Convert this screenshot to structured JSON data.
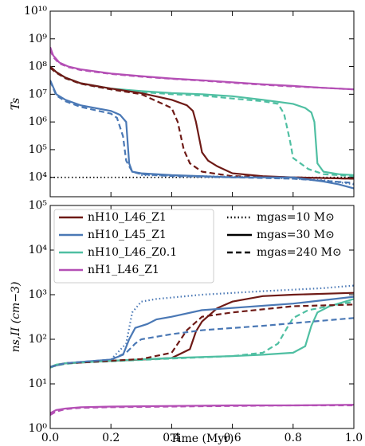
{
  "chart_data": [
    {
      "type": "line",
      "ylabel": "Ts",
      "log_y": true,
      "xlim": [
        0,
        1
      ],
      "ylim": [
        2000,
        10000000000.0
      ],
      "yticks": [
        {
          "value": 10000.0,
          "label": "10⁴"
        },
        {
          "value": 100000.0,
          "label": "10⁵"
        },
        {
          "value": 1000000.0,
          "label": "10⁶"
        },
        {
          "value": 10000000.0,
          "label": "10⁷"
        },
        {
          "value": 100000000.0,
          "label": "10⁸"
        },
        {
          "value": 1000000000.0,
          "label": "10⁹"
        },
        {
          "value": 10000000000.0,
          "label": "10¹⁰"
        }
      ],
      "reference_line": {
        "value": 10000,
        "color": "#000000",
        "line": "dotted"
      },
      "series": [
        {
          "name": "nH1_L46_Z1",
          "color": "#b44fb5",
          "line": "solid",
          "x": [
            0,
            0.01,
            0.03,
            0.06,
            0.1,
            0.2,
            0.3,
            0.4,
            0.5,
            0.6,
            0.7,
            0.8,
            0.9,
            1.0
          ],
          "values": [
            500000000.0,
            250000000.0,
            140000000.0,
            100000000.0,
            79000000.0,
            56000000.0,
            45000000.0,
            37000000.0,
            32000000.0,
            27000000.0,
            23000000.0,
            20000000.0,
            17000000.0,
            15000000.0
          ]
        },
        {
          "name": "nH1_L46_Z1",
          "color": "#b44fb5",
          "line": "dashed",
          "x": [
            0,
            0.01,
            0.03,
            0.06,
            0.1,
            0.2,
            0.3,
            0.4,
            0.5,
            0.6,
            0.7,
            0.8,
            0.9,
            1.0
          ],
          "values": [
            400000000.0,
            220000000.0,
            130000000.0,
            95000000.0,
            75000000.0,
            54000000.0,
            43000000.0,
            36000000.0,
            31000000.0,
            26000000.0,
            22000000.0,
            19000000.0,
            17000000.0,
            15000000.0
          ]
        },
        {
          "name": "nH10_L46_Z0.1",
          "color": "#4fbfa2",
          "line": "solid",
          "x": [
            0,
            0.02,
            0.05,
            0.1,
            0.2,
            0.3,
            0.4,
            0.5,
            0.6,
            0.7,
            0.8,
            0.84,
            0.86,
            0.87,
            0.88,
            0.9,
            0.95,
            1.0
          ],
          "values": [
            100000000.0,
            63000000.0,
            40000000.0,
            25000000.0,
            16000000.0,
            13000000.0,
            11000000.0,
            10000000.0,
            8500000.0,
            6300000.0,
            4500000.0,
            3200000.0,
            2200000.0,
            1000000.0,
            32000.0,
            16000.0,
            13000.0,
            12000.0
          ]
        },
        {
          "name": "nH10_L46_Z0.1",
          "color": "#4fbfa2",
          "line": "dashed",
          "x": [
            0,
            0.02,
            0.05,
            0.1,
            0.2,
            0.3,
            0.4,
            0.5,
            0.6,
            0.7,
            0.75,
            0.77,
            0.79,
            0.8,
            0.85,
            0.9,
            1.0
          ],
          "values": [
            90000000.0,
            60000000.0,
            38000000.0,
            24000000.0,
            15000000.0,
            12000000.0,
            10000000.0,
            9000000.0,
            7000000.0,
            5600000.0,
            4500000.0,
            2000000.0,
            200000.0,
            50000.0,
            20000.0,
            13000.0,
            11000.0
          ]
        },
        {
          "name": "nH10_L46_Z1",
          "color": "#6e1a16",
          "line": "solid",
          "x": [
            0,
            0.02,
            0.05,
            0.1,
            0.2,
            0.3,
            0.4,
            0.45,
            0.47,
            0.48,
            0.5,
            0.52,
            0.55,
            0.6,
            0.7,
            0.8,
            1.0
          ],
          "values": [
            100000000.0,
            63000000.0,
            40000000.0,
            25000000.0,
            16000000.0,
            11000000.0,
            6300000.0,
            4000000.0,
            2500000.0,
            1000000.0,
            80000.0,
            40000.0,
            25000.0,
            14000.0,
            11000.0,
            10000.0,
            8900.0
          ]
        },
        {
          "name": "nH10_L46_Z1",
          "color": "#6e1a16",
          "line": "dashed",
          "x": [
            0,
            0.02,
            0.05,
            0.1,
            0.2,
            0.3,
            0.4,
            0.42,
            0.44,
            0.46,
            0.5,
            0.6,
            0.8,
            1.0
          ],
          "values": [
            90000000.0,
            60000000.0,
            38000000.0,
            24000000.0,
            15000000.0,
            10000000.0,
            3200000.0,
            1000000.0,
            100000.0,
            32000.0,
            16000.0,
            11000.0,
            10000.0,
            8900.0
          ]
        },
        {
          "name": "nH10_L45_Z1",
          "color": "#4a78b5",
          "line": "solid",
          "x": [
            0,
            0.02,
            0.05,
            0.1,
            0.2,
            0.23,
            0.25,
            0.26,
            0.27,
            0.3,
            0.4,
            0.5,
            0.6,
            0.8,
            0.9,
            0.95,
            1.0
          ],
          "values": [
            32000000.0,
            10000000.0,
            6300000.0,
            4000000.0,
            2500000.0,
            1800000.0,
            1000000.0,
            32000.0,
            16000.0,
            14000.0,
            12000.0,
            11000.0,
            10000.0,
            10000.0,
            7100.0,
            5600.0,
            4000.0
          ]
        },
        {
          "name": "nH10_L45_Z1",
          "color": "#4a78b5",
          "line": "dashed",
          "x": [
            0,
            0.02,
            0.05,
            0.1,
            0.2,
            0.22,
            0.24,
            0.25,
            0.27,
            0.3,
            0.4,
            0.6,
            0.8,
            1.0
          ],
          "values": [
            30000000.0,
            9000000.0,
            5600000.0,
            3500000.0,
            2000000.0,
            1400000.0,
            300000.0,
            40000.0,
            16000.0,
            13000.0,
            11000.0,
            10000.0,
            8900.0,
            6300.0
          ]
        },
        {
          "name": "nH10_L45_Z1",
          "color": "#4a78b5",
          "line": "dotted",
          "x": [
            0.3,
            0.5,
            0.7,
            0.9,
            1.0
          ],
          "values": [
            12000.0,
            11000.0,
            10000.0,
            7900.0,
            5600.0
          ]
        }
      ]
    },
    {
      "type": "line",
      "ylabel": "ns,II (cm−3)",
      "xlabel": "Time (Myr)",
      "log_y": true,
      "xlim": [
        0,
        1
      ],
      "ylim": [
        1,
        100000.0
      ],
      "xticks": [
        {
          "value": 0,
          "label": "0.0"
        },
        0.2,
        0.4,
        0.6,
        0.8,
        {
          "value": 1,
          "label": "1.0"
        }
      ],
      "yticks": [
        {
          "value": 1,
          "label": "10⁰"
        },
        {
          "value": 10,
          "label": "10¹"
        },
        {
          "value": 100,
          "label": "10²"
        },
        {
          "value": 1000,
          "label": "10³"
        },
        {
          "value": 10000,
          "label": "10⁴"
        },
        {
          "value": 100000,
          "label": "10⁵"
        }
      ],
      "line_styles": [
        {
          "label": "mgas=10 M⊙",
          "line": "dotted"
        },
        {
          "label": "mgas=30 M⊙",
          "line": "solid"
        },
        {
          "label": "mgas=240 M⊙",
          "line": "dashed"
        }
      ],
      "series": [
        {
          "name": "nH10_L46_Z1",
          "color": "#6e1a16",
          "line": "solid",
          "x": [
            0,
            0.05,
            0.1,
            0.2,
            0.3,
            0.4,
            0.46,
            0.48,
            0.5,
            0.55,
            0.6,
            0.7,
            0.8,
            1.0
          ],
          "values": [
            24,
            29,
            30,
            33,
            35,
            38,
            60,
            150,
            250,
            500,
            700,
            930,
            1000,
            1100
          ]
        },
        {
          "name": "nH10_L45_Z1",
          "color": "#4a78b5",
          "line": "solid",
          "x": [
            0,
            0.05,
            0.1,
            0.2,
            0.24,
            0.26,
            0.28,
            0.32,
            0.35,
            0.4,
            0.5,
            0.8,
            1.0
          ],
          "values": [
            24,
            29,
            31,
            35,
            45,
            100,
            180,
            220,
            280,
            320,
            450,
            630,
            900
          ]
        },
        {
          "name": "nH10_L46_Z0.1",
          "color": "#4fbfa2",
          "line": "solid",
          "x": [
            0,
            0.02,
            0.05,
            0.1,
            0.2,
            0.4,
            0.6,
            0.7,
            0.8,
            0.84,
            0.86,
            0.88,
            0.92,
            1.0
          ],
          "values": [
            24,
            27,
            29,
            30,
            33,
            38,
            42,
            45,
            50,
            70,
            200,
            400,
            550,
            800
          ]
        },
        {
          "name": "nH1_L46_Z1",
          "color": "#b44fb5",
          "line": "solid",
          "x": [
            0,
            0.02,
            0.05,
            0.1,
            0.2,
            0.4,
            0.6,
            0.8,
            1.0
          ],
          "values": [
            2.2,
            2.6,
            2.8,
            3.0,
            3.1,
            3.2,
            3.3,
            3.3,
            3.4
          ]
        },
        {
          "name": "nH1_L46_Z1",
          "color": "#b44fb5",
          "line": "dashed",
          "x": [
            0,
            0.02,
            0.05,
            0.1,
            0.2,
            0.4,
            0.6,
            0.8,
            1.0
          ],
          "values": [
            2.0,
            2.4,
            2.7,
            2.9,
            3.0,
            3.1,
            3.2,
            3.3,
            3.3
          ]
        },
        {
          "name": "nH10_L46_Z0.1",
          "color": "#4fbfa2",
          "line": "dashed",
          "x": [
            0,
            0.02,
            0.05,
            0.1,
            0.2,
            0.4,
            0.6,
            0.7,
            0.75,
            0.78,
            0.8,
            0.85,
            1.0
          ],
          "values": [
            23,
            26,
            28,
            30,
            32,
            37,
            42,
            50,
            80,
            180,
            300,
            450,
            700
          ]
        },
        {
          "name": "nH10_L46_Z1",
          "color": "#6e1a16",
          "line": "dashed",
          "x": [
            0,
            0.05,
            0.1,
            0.2,
            0.3,
            0.4,
            0.43,
            0.45,
            0.5,
            0.6,
            0.8,
            1.0
          ],
          "values": [
            24,
            29,
            30,
            33,
            36,
            50,
            100,
            160,
            320,
            400,
            550,
            600
          ]
        },
        {
          "name": "nH10_L45_Z1",
          "color": "#4a78b5",
          "line": "dashed",
          "x": [
            0,
            0.05,
            0.1,
            0.2,
            0.25,
            0.28,
            0.3,
            0.4,
            0.5,
            0.7,
            1.0
          ],
          "values": [
            24,
            29,
            31,
            35,
            50,
            80,
            100,
            130,
            160,
            200,
            300
          ]
        },
        {
          "name": "nH10_L45_Z1",
          "color": "#4a78b5",
          "line": "dotted",
          "x": [
            0.2,
            0.25,
            0.27,
            0.3,
            0.35,
            0.5,
            0.7,
            0.9,
            1.0
          ],
          "values": [
            35,
            80,
            400,
            700,
            800,
            1000,
            1200,
            1400,
            1600
          ]
        }
      ]
    }
  ]
}
